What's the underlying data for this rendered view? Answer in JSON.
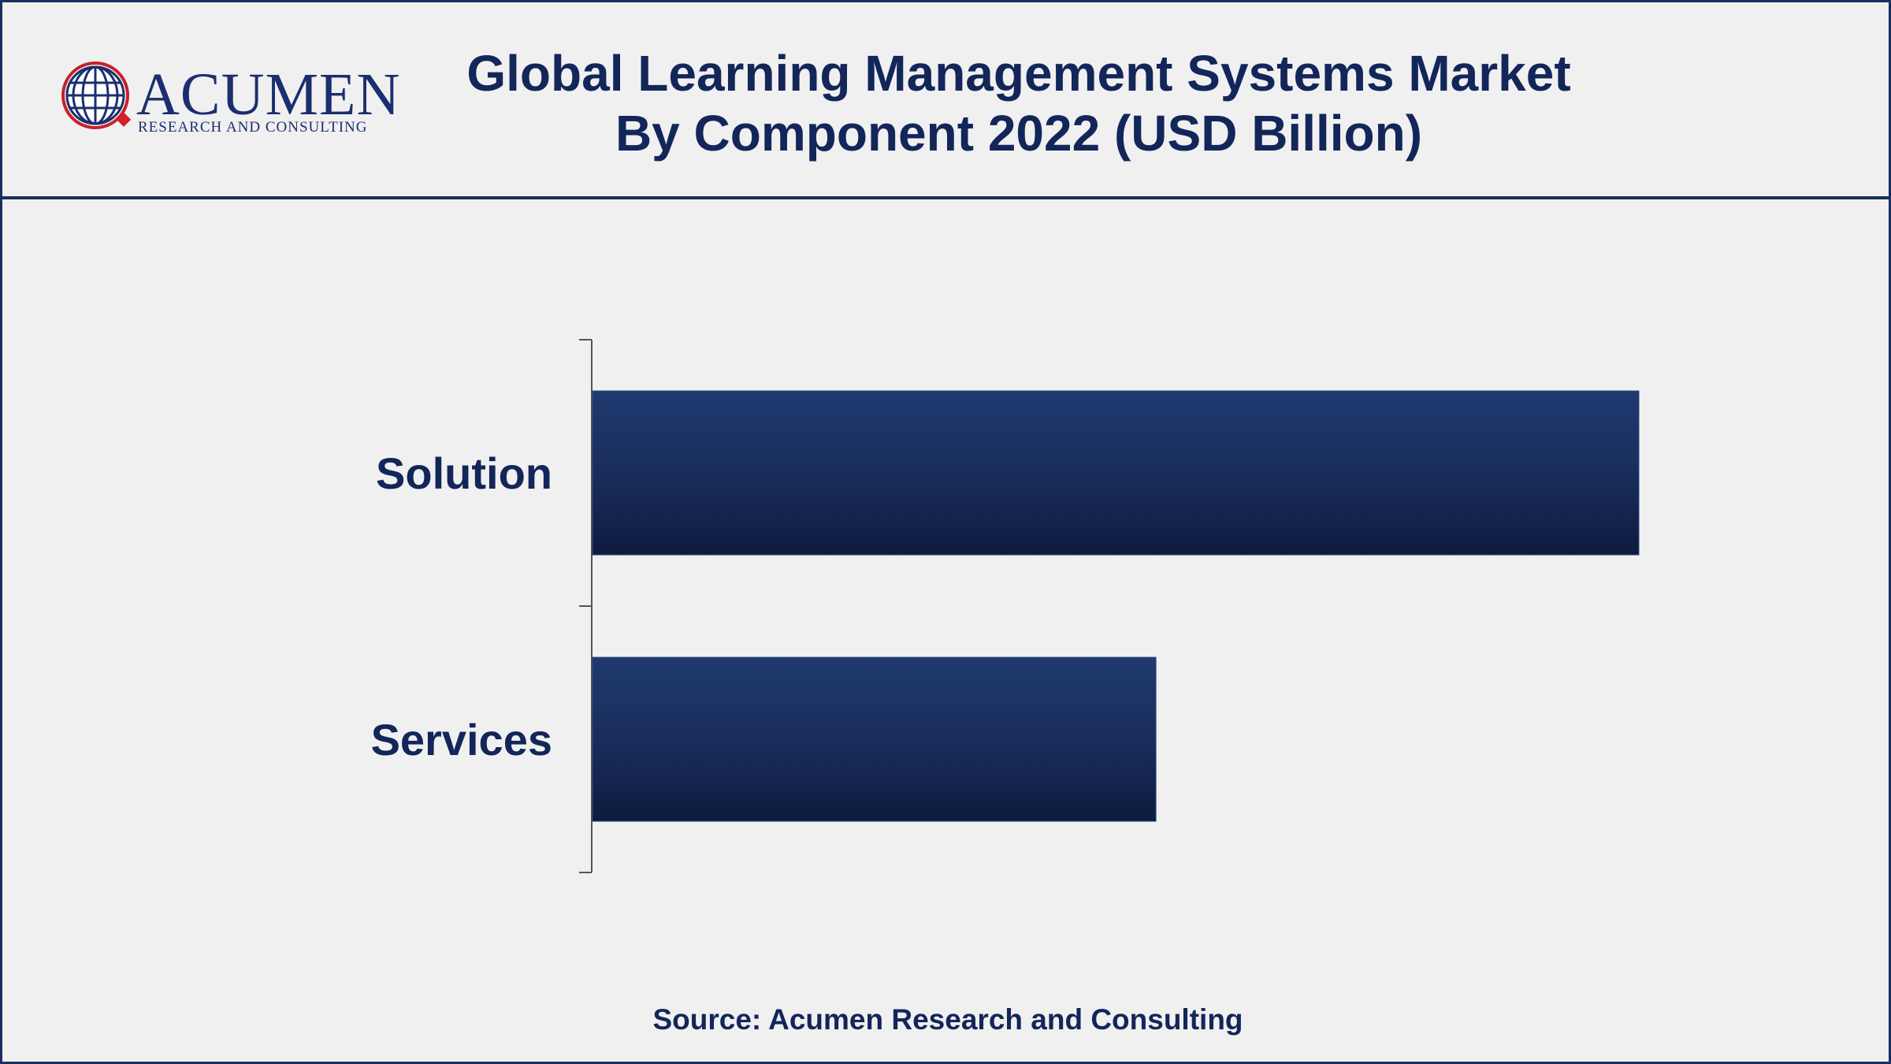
{
  "header": {
    "title_line1": "Global Learning Management Systems Market",
    "title_line2": "By Component 2022 (USD Billion)"
  },
  "logo": {
    "name": "ACUMEN",
    "tagline": "RESEARCH AND CONSULTING",
    "icon": "globe-icon"
  },
  "chart_data": {
    "type": "bar",
    "orientation": "horizontal",
    "categories": [
      "Solution",
      "Services"
    ],
    "values": [
      13.0,
      7.0
    ],
    "xlim": [
      0,
      13.0
    ],
    "grid": false,
    "legend": "none",
    "title": "Global Learning Management Systems Market By Component 2022 (USD Billion)",
    "bar_color": "#1c3366"
  },
  "footer": {
    "source": "Source: Acumen Research and Consulting"
  }
}
